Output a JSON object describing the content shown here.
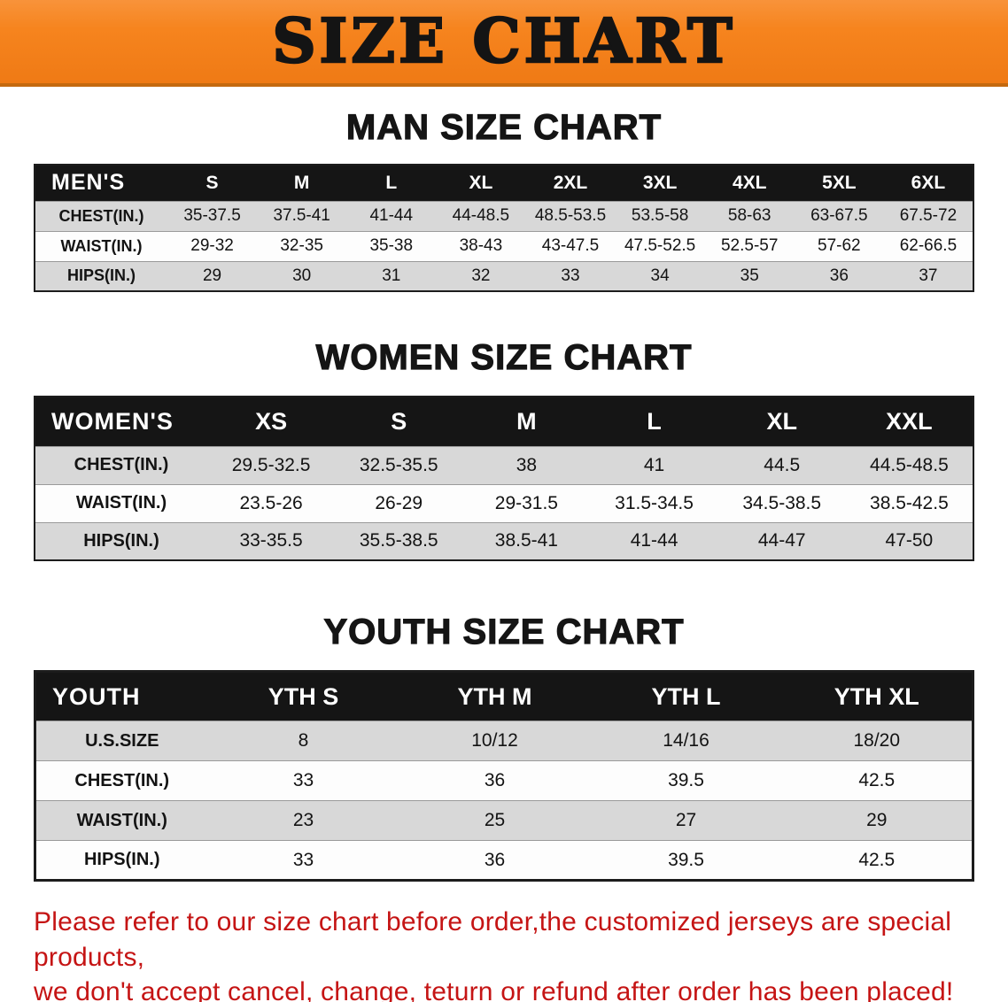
{
  "banner": {
    "title": "SIZE CHART"
  },
  "men": {
    "heading": "MAN SIZE CHART",
    "header": [
      "MEN'S",
      "S",
      "M",
      "L",
      "XL",
      "2XL",
      "3XL",
      "4XL",
      "5XL",
      "6XL"
    ],
    "rows": [
      [
        "CHEST(IN.)",
        "35-37.5",
        "37.5-41",
        "41-44",
        "44-48.5",
        "48.5-53.5",
        "53.5-58",
        "58-63",
        "63-67.5",
        "67.5-72"
      ],
      [
        "WAIST(IN.)",
        "29-32",
        "32-35",
        "35-38",
        "38-43",
        "43-47.5",
        "47.5-52.5",
        "52.5-57",
        "57-62",
        "62-66.5"
      ],
      [
        "HIPS(IN.)",
        "29",
        "30",
        "31",
        "32",
        "33",
        "34",
        "35",
        "36",
        "37"
      ]
    ]
  },
  "women": {
    "heading": "WOMEN SIZE CHART",
    "header": [
      "WOMEN'S",
      "XS",
      "S",
      "M",
      "L",
      "XL",
      "XXL"
    ],
    "rows": [
      [
        "CHEST(IN.)",
        "29.5-32.5",
        "32.5-35.5",
        "38",
        "41",
        "44.5",
        "44.5-48.5"
      ],
      [
        "WAIST(IN.)",
        "23.5-26",
        "26-29",
        "29-31.5",
        "31.5-34.5",
        "34.5-38.5",
        "38.5-42.5"
      ],
      [
        "HIPS(IN.)",
        "33-35.5",
        "35.5-38.5",
        "38.5-41",
        "41-44",
        "44-47",
        "47-50"
      ]
    ]
  },
  "youth": {
    "heading": "YOUTH SIZE CHART",
    "header": [
      "YOUTH",
      "YTH S",
      "YTH M",
      "YTH L",
      "YTH XL"
    ],
    "rows": [
      [
        "U.S.SIZE",
        "8",
        "10/12",
        "14/16",
        "18/20"
      ],
      [
        "CHEST(IN.)",
        "33",
        "36",
        "39.5",
        "42.5"
      ],
      [
        "WAIST(IN.)",
        "23",
        "25",
        "27",
        "29"
      ],
      [
        "HIPS(IN.)",
        "33",
        "36",
        "39.5",
        "42.5"
      ]
    ]
  },
  "disclaimer": {
    "line1": "Please refer to our size chart before order,the customized jerseys are special products,",
    "line2": "we don't accept cancel, change, teturn or refund after order has been placed!"
  },
  "colors": {
    "banner_bg": "#f6841e",
    "banner_text": "#141414",
    "table_header_bg": "#151515",
    "table_header_text": "#ffffff",
    "row_alt_bg": "#d8d8d8",
    "row_bg": "#fdfdfd",
    "disclaimer_red": "#c51414"
  }
}
